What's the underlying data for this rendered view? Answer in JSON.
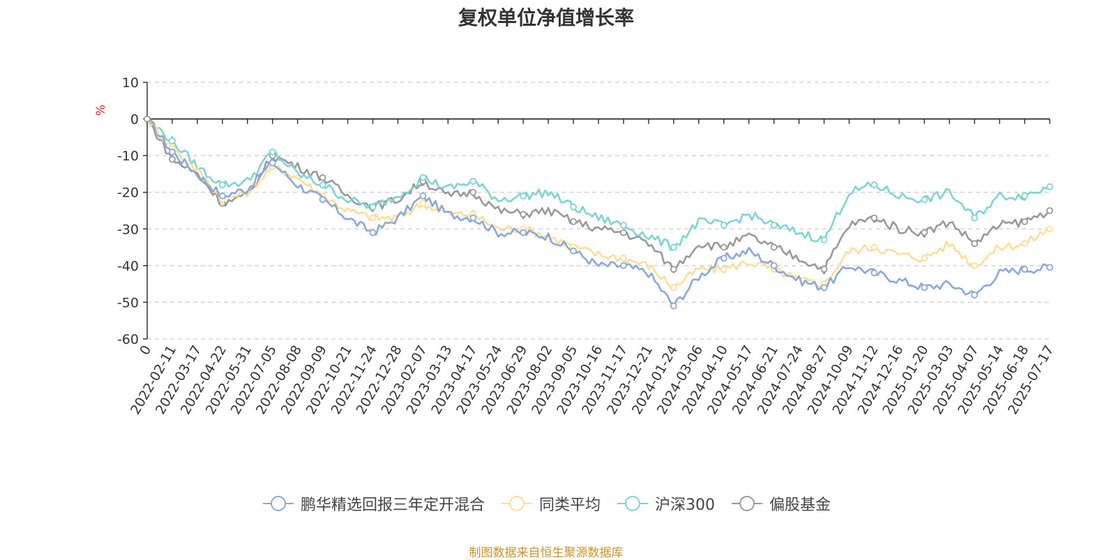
{
  "chart_data": {
    "type": "line",
    "title": "复权单位净值增长率",
    "ylabel": "%",
    "ylim": [
      -60,
      10
    ],
    "yticks": [
      10,
      0,
      -10,
      -20,
      -30,
      -40,
      -50,
      -60
    ],
    "grid": true,
    "legend_position": "bottom",
    "x": [
      "0",
      "2022-02-11",
      "2022-03-17",
      "2022-04-22",
      "2022-05-31",
      "2022-07-05",
      "2022-08-08",
      "2022-09-09",
      "2022-10-21",
      "2022-11-24",
      "2022-12-28",
      "2023-02-07",
      "2023-03-13",
      "2023-04-17",
      "2023-05-24",
      "2023-06-29",
      "2023-08-02",
      "2023-09-05",
      "2023-10-16",
      "2023-11-17",
      "2023-12-21",
      "2024-01-24",
      "2024-03-06",
      "2024-04-10",
      "2024-05-17",
      "2024-06-21",
      "2024-07-24",
      "2024-08-27",
      "2024-10-09",
      "2024-11-12",
      "2024-12-16",
      "2025-01-20",
      "2025-03-03",
      "2025-04-07",
      "2025-05-14",
      "2025-06-18",
      "2025-07-17"
    ],
    "series": [
      {
        "name": "鹏华精选回报三年定开混合",
        "color": "#8aa8d8",
        "values": [
          0,
          -9,
          -15,
          -21,
          -19,
          -12,
          -18,
          -22,
          -27,
          -31,
          -27,
          -21,
          -26,
          -27,
          -31,
          -31,
          -32,
          -36,
          -40,
          -40,
          -42,
          -51,
          -43,
          -38,
          -36,
          -40,
          -44,
          -46,
          -40,
          -42,
          -44,
          -46,
          -45,
          -48,
          -42,
          -41,
          -40.5
        ]
      },
      {
        "name": "同类平均",
        "color": "#fddd9a",
        "values": [
          0,
          -8,
          -14,
          -22,
          -20,
          -13,
          -16,
          -21,
          -25,
          -27,
          -27,
          -23,
          -26,
          -26,
          -30,
          -30,
          -32,
          -35,
          -37,
          -38,
          -40,
          -46,
          -41,
          -41,
          -39,
          -41,
          -44,
          -45,
          -36,
          -35,
          -37,
          -38,
          -34,
          -40,
          -35,
          -34,
          -30
        ]
      },
      {
        "name": "沪深300",
        "color": "#7fd3d3",
        "values": [
          0,
          -6,
          -13,
          -18,
          -17,
          -9,
          -15,
          -18,
          -22,
          -24,
          -21,
          -16,
          -19,
          -17,
          -22,
          -21,
          -20,
          -24,
          -27,
          -29,
          -32,
          -35,
          -28,
          -29,
          -26,
          -29,
          -31,
          -33,
          -20,
          -18,
          -21,
          -22,
          -20,
          -27,
          -21,
          -21,
          -18.5
        ]
      },
      {
        "name": "偏股基金",
        "color": "#999999",
        "values": [
          0,
          -11,
          -15,
          -23,
          -21,
          -10,
          -13,
          -16,
          -21,
          -24,
          -22,
          -17,
          -21,
          -20,
          -25,
          -26,
          -25,
          -28,
          -30,
          -31,
          -34,
          -41,
          -34,
          -35,
          -32,
          -35,
          -38,
          -41,
          -29,
          -27,
          -30,
          -31,
          -28,
          -34,
          -29,
          -28,
          -25
        ]
      }
    ]
  },
  "source_note": "制图数据来自恒生聚源数据库"
}
